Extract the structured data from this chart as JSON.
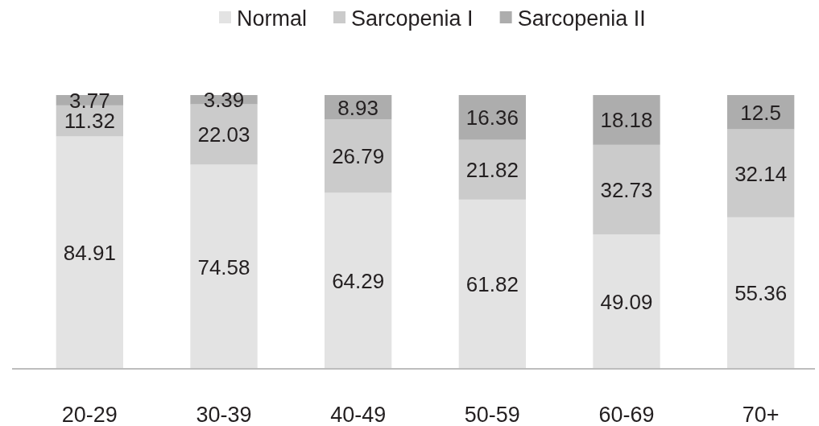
{
  "chart_data": {
    "type": "bar",
    "stacked": true,
    "categories": [
      "20-29",
      "30-39",
      "40-49",
      "50-59",
      "60-69",
      "70+"
    ],
    "series": [
      {
        "name": "Normal",
        "color": "#e3e3e3",
        "values": [
          84.91,
          74.58,
          64.29,
          61.82,
          49.09,
          55.36
        ]
      },
      {
        "name": "Sarcopenia I",
        "color": "#cbcbcb",
        "values": [
          11.32,
          22.03,
          26.79,
          21.82,
          32.73,
          32.14
        ]
      },
      {
        "name": "Sarcopenia II",
        "color": "#adadad",
        "values": [
          3.77,
          3.39,
          8.93,
          16.36,
          18.18,
          12.5
        ]
      }
    ],
    "data_labels": true,
    "legend": "top"
  }
}
